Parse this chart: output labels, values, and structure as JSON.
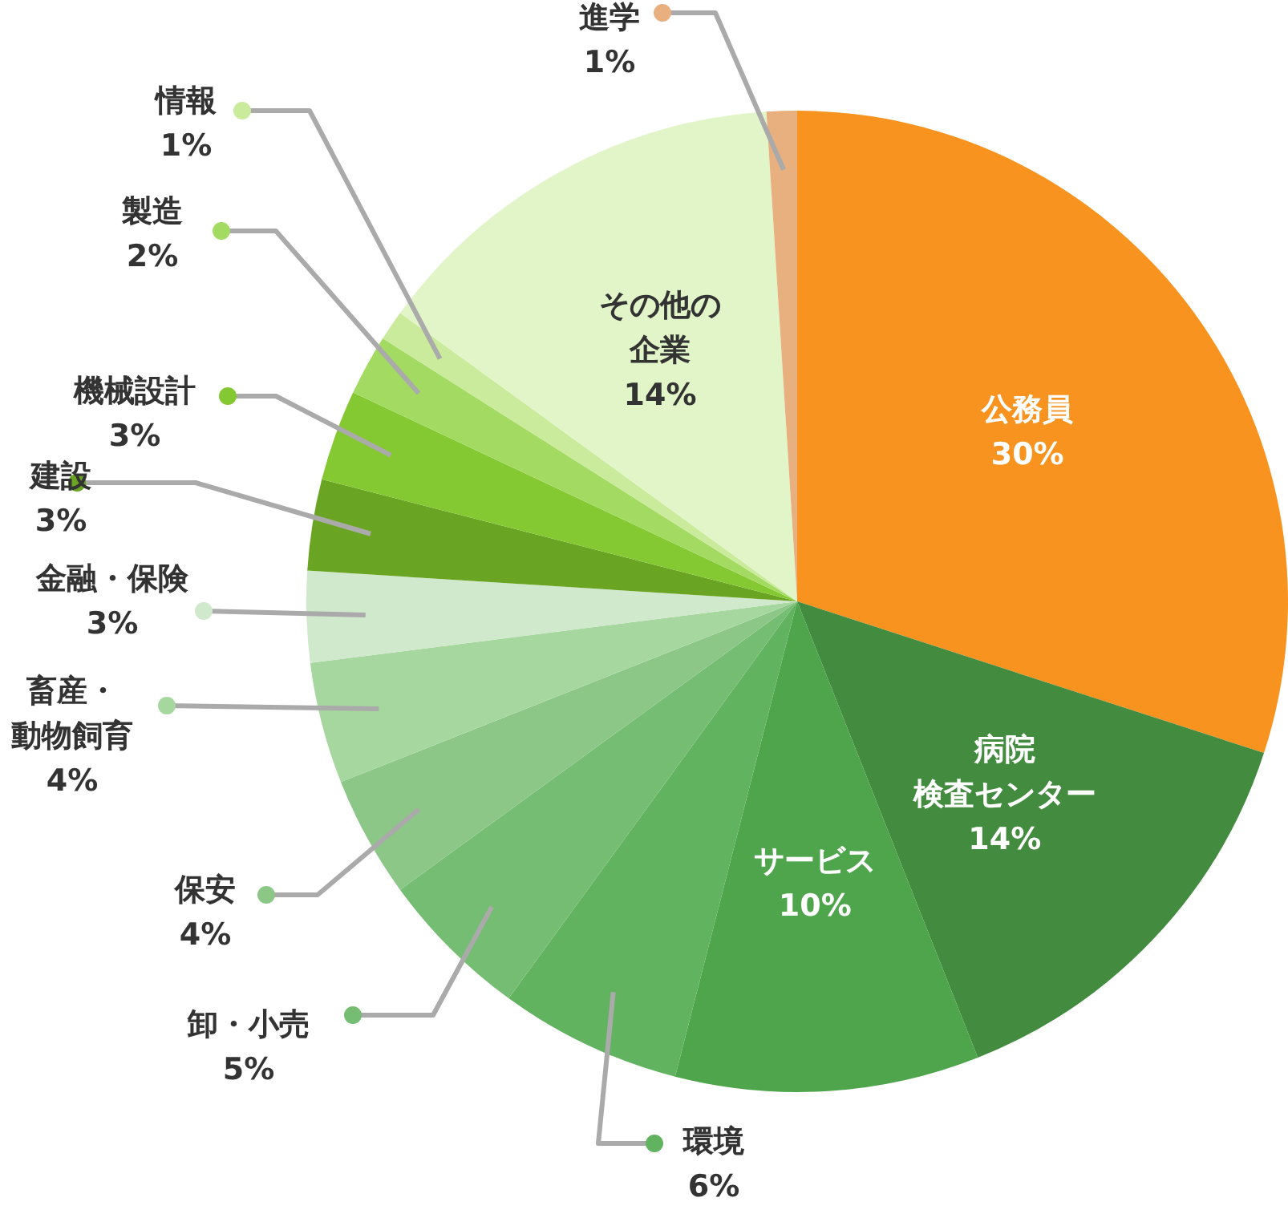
{
  "chart_data": {
    "type": "pie",
    "categories": [
      "公務員",
      "病院検査センター",
      "サービス",
      "環境",
      "卸・小売",
      "保安",
      "畜産・動物飼育",
      "金融・保険",
      "建設",
      "機械設計",
      "製造",
      "情報",
      "その他の企業",
      "進学"
    ],
    "values": [
      30,
      14,
      10,
      6,
      5,
      4,
      4,
      3,
      3,
      3,
      2,
      1,
      14,
      1
    ],
    "value_labels": [
      "30%",
      "14%",
      "10%",
      "6%",
      "5%",
      "4%",
      "4%",
      "3%",
      "3%",
      "3%",
      "2%",
      "1%",
      "14%",
      "1%"
    ],
    "colors": [
      "#f7931e",
      "#438b3f",
      "#4fa54c",
      "#62b35f",
      "#75bd72",
      "#8cc788",
      "#a6d79e",
      "#d0e8cb",
      "#69a522",
      "#85c932",
      "#a3db62",
      "#c9eb9b",
      "#e2f5c8",
      "#e8b07f"
    ],
    "legend": "left"
  }
}
